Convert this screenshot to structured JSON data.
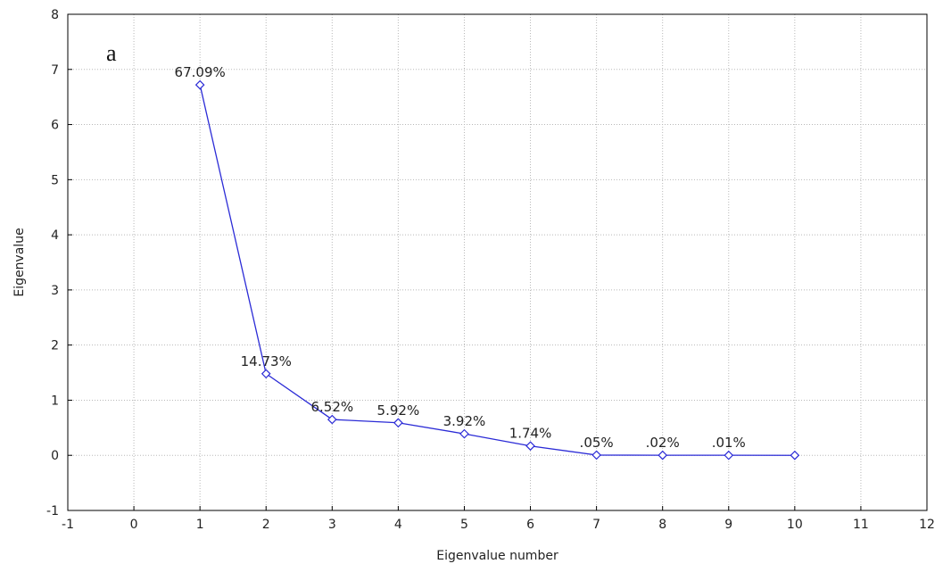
{
  "chart_data": {
    "type": "line",
    "panel_label": "a",
    "xlabel": "Eigenvalue number",
    "ylabel": "Eigenvalue",
    "xlim": [
      -1,
      12
    ],
    "ylim": [
      -1,
      8
    ],
    "x_ticks": [
      -1,
      0,
      1,
      2,
      3,
      4,
      5,
      6,
      7,
      8,
      9,
      10,
      11,
      12
    ],
    "y_ticks": [
      -1,
      0,
      1,
      2,
      3,
      4,
      5,
      6,
      7,
      8
    ],
    "grid": true,
    "series": [
      {
        "color": "#2b2bd6",
        "marker": "diamond",
        "points": [
          {
            "x": 1,
            "y": 6.72,
            "label": "67.09%"
          },
          {
            "x": 2,
            "y": 1.48,
            "label": "14.73%"
          },
          {
            "x": 3,
            "y": 0.65,
            "label": "6.52%"
          },
          {
            "x": 4,
            "y": 0.59,
            "label": "5.92%"
          },
          {
            "x": 5,
            "y": 0.39,
            "label": "3.92%"
          },
          {
            "x": 6,
            "y": 0.17,
            "label": "1.74%"
          },
          {
            "x": 7,
            "y": 0.005,
            "label": ".05%"
          },
          {
            "x": 8,
            "y": 0.002,
            "label": ".02%"
          },
          {
            "x": 9,
            "y": 0.001,
            "label": ".01%"
          },
          {
            "x": 10,
            "y": 0.0,
            "label": ""
          }
        ]
      }
    ]
  }
}
